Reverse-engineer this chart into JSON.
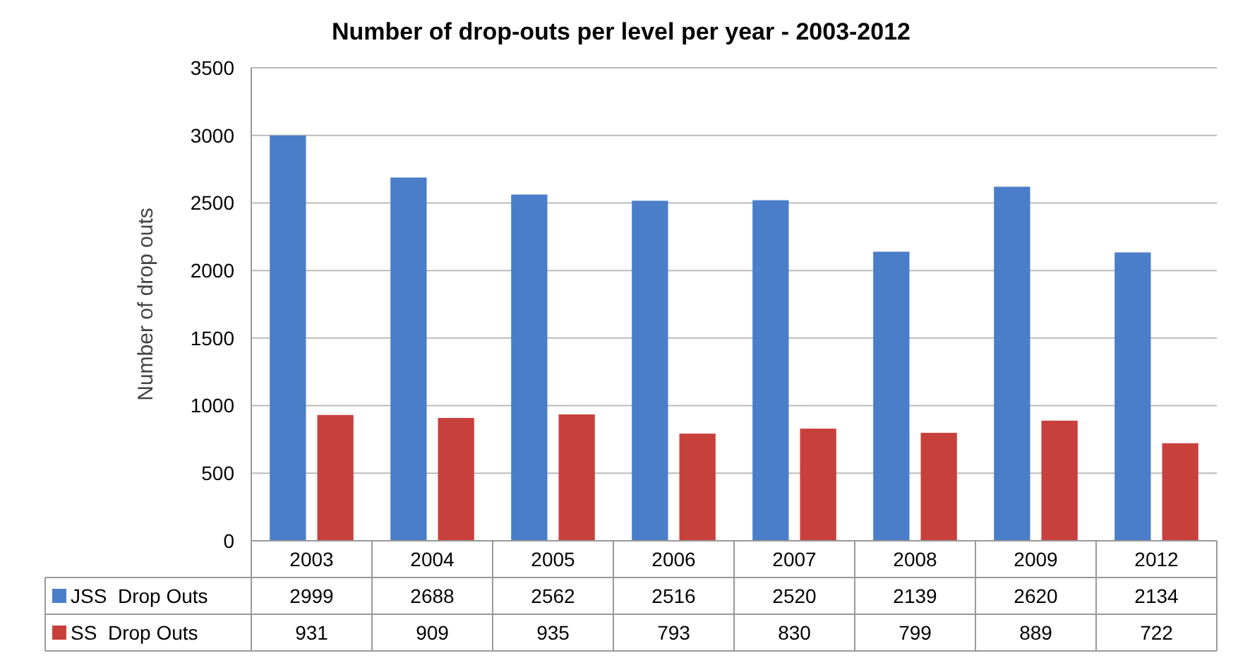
{
  "chart_data": {
    "type": "bar",
    "title": "Number of drop-outs per level per year - 2003-2012",
    "ylabel": "Number of drop outs",
    "categories": [
      "2003",
      "2004",
      "2005",
      "2006",
      "2007",
      "2008",
      "2009",
      "2012"
    ],
    "series": [
      {
        "name": "JSS  Drop Outs",
        "color": "#4a7ec8",
        "values": [
          2999,
          2688,
          2562,
          2516,
          2520,
          2139,
          2620,
          2134
        ]
      },
      {
        "name": "SS  Drop Outs",
        "color": "#c8403c",
        "values": [
          931,
          909,
          935,
          793,
          830,
          799,
          889,
          722
        ]
      }
    ],
    "ylim": [
      0,
      3500
    ],
    "yticks": [
      0,
      500,
      1000,
      1500,
      2000,
      2500,
      3000,
      3500
    ],
    "grid": "y",
    "legend": "bottom",
    "data_labels": true
  }
}
